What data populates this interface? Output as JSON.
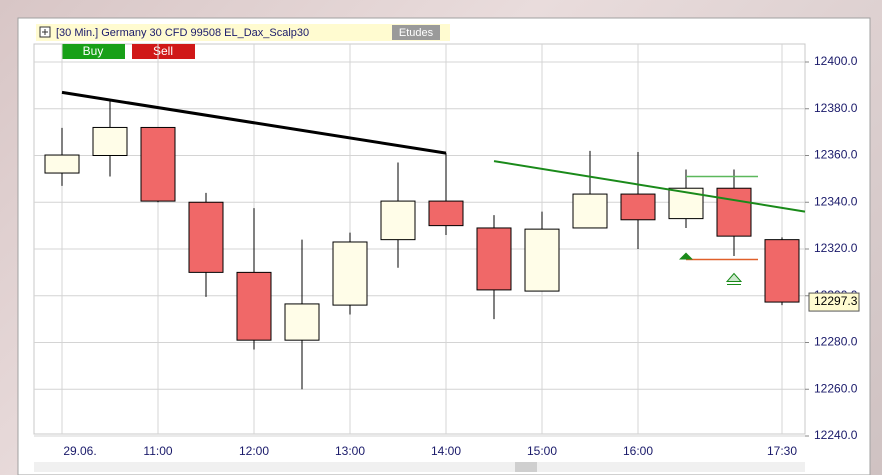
{
  "chart_data": {
    "type": "candlestick",
    "title": "[30 Min.] Germany 30 CFD   99508 EL_Dax_Scalp30",
    "etudes_label": "Etudes",
    "buy_label": "Buy",
    "sell_label": "Sell",
    "categories": [
      "29.06.",
      null,
      "11:00",
      null,
      "12:00",
      null,
      "13:00",
      null,
      "14:00",
      null,
      "15:00",
      null,
      "16:00",
      null,
      null,
      "17:30"
    ],
    "open": [
      12352.5,
      12360,
      12372,
      12340,
      12310,
      12281,
      12296,
      12324,
      12340.5,
      12329,
      12302,
      12329,
      12343.5,
      12333,
      12346,
      12324
    ],
    "high": [
      12371.8,
      12384,
      12372,
      12344,
      12337.5,
      12324,
      12327,
      12357,
      12361,
      12334.5,
      12336,
      12362,
      12361.5,
      12354,
      12354,
      12325
    ],
    "low": [
      12347,
      12351,
      12340,
      12299.5,
      12277,
      12260,
      12292,
      12312,
      12326,
      12290,
      12302,
      12329,
      12320,
      12329,
      12317,
      12296
    ],
    "close": [
      12360.2,
      12372,
      12340.5,
      12310,
      12281,
      12296.5,
      12323,
      12340.5,
      12330,
      12302.5,
      12328.5,
      12343.5,
      12332.5,
      12346,
      12325.5,
      12297.3
    ],
    "up_color": "#fffde8",
    "down_color": "#f06868",
    "last_label": "12297.3",
    "trendlines": [
      {
        "color": "#000000",
        "x": [
          0,
          8
        ],
        "values": [
          12387,
          12361
        ]
      },
      {
        "color": "#1a8a1a",
        "x": [
          9,
          15.5
        ],
        "values": [
          12357.6,
          12336
        ]
      }
    ],
    "levels": [
      {
        "color": "#5cb85c",
        "x": [
          13,
          14.5
        ],
        "value": 12351
      },
      {
        "color": "#e0602a",
        "x": [
          13,
          14.5
        ],
        "value": 12315.5
      }
    ],
    "ylim": [
      12240,
      12400
    ],
    "yticks": [
      {
        "value": 12240,
        "label": "12240.0"
      },
      {
        "value": 12260,
        "label": "12260.0"
      },
      {
        "value": 12280,
        "label": "12280.0"
      },
      {
        "value": 12300,
        "label": "12300.0"
      },
      {
        "value": 12320,
        "label": "12320.0"
      },
      {
        "value": 12340,
        "label": "12340.0"
      },
      {
        "value": 12360,
        "label": "12360.0"
      },
      {
        "value": 12380,
        "label": "12380.0"
      },
      {
        "value": 12400,
        "label": "12400.0"
      }
    ],
    "grid": true
  }
}
